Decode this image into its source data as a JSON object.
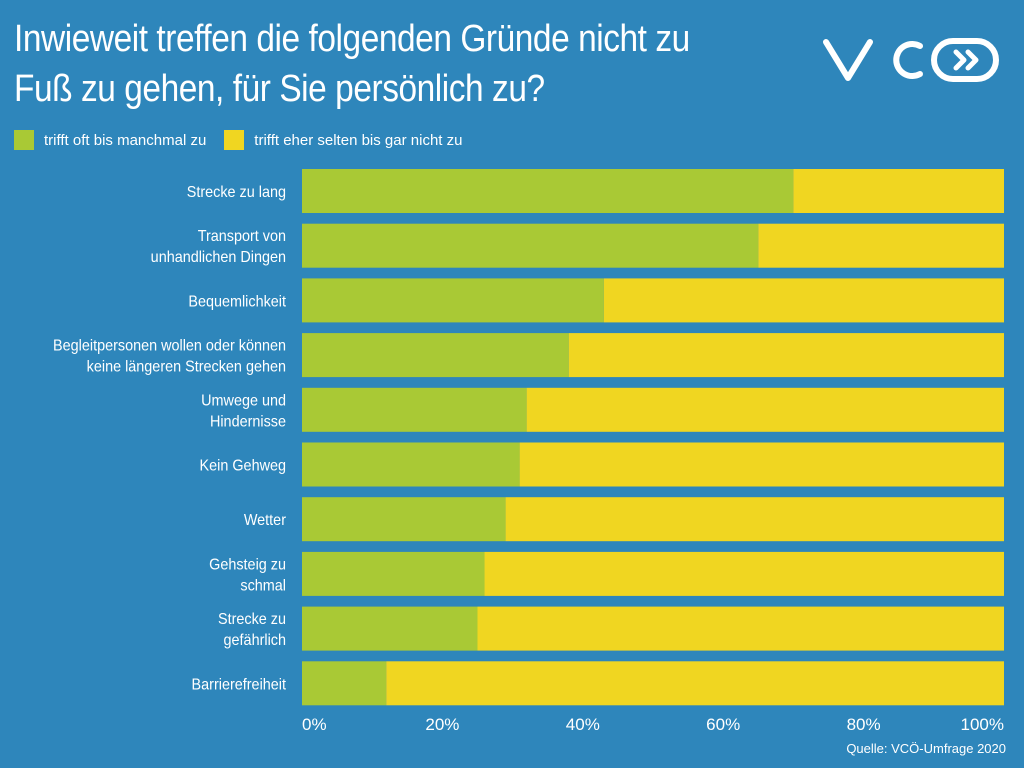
{
  "title": {
    "line1": "Inwieweit treffen die folgenden Gründe nicht zu",
    "line2": "Fuß zu gehen, für Sie persönlich zu?"
  },
  "logo": {
    "text": "VCÖ",
    "icon": "double-chevron-right-icon"
  },
  "legend": [
    {
      "label": "trifft oft bis manchmal zu",
      "color": "#a9c935"
    },
    {
      "label": "trifft eher selten bis gar nicht zu",
      "color": "#f0d621"
    }
  ],
  "source": "Quelle: VCÖ-Umfrage 2020",
  "colors": {
    "background": "#2e86bb",
    "green": "#a9c935",
    "yellow": "#f0d621"
  },
  "chart_data": {
    "type": "bar",
    "orientation": "horizontal",
    "stacked": true,
    "categories": [
      [
        "Strecke zu lang"
      ],
      [
        "Transport von",
        "unhandlichen Dingen"
      ],
      [
        "Bequemlichkeit"
      ],
      [
        "Begleitpersonen wollen oder können",
        "keine längeren Strecken gehen"
      ],
      [
        "Umwege und",
        "Hindernisse"
      ],
      [
        "Kein Gehweg"
      ],
      [
        "Wetter"
      ],
      [
        "Gehsteig zu",
        "schmal"
      ],
      [
        "Strecke zu",
        "gefährlich"
      ],
      [
        "Barrierefreiheit"
      ]
    ],
    "series": [
      {
        "name": "trifft oft bis manchmal zu",
        "color": "#a9c935",
        "values": [
          70,
          65,
          43,
          38,
          32,
          31,
          29,
          26,
          25,
          12
        ]
      },
      {
        "name": "trifft eher selten bis gar nicht zu",
        "color": "#f0d621",
        "values": [
          30,
          35,
          57,
          62,
          68,
          69,
          71,
          74,
          75,
          88
        ]
      }
    ],
    "xlim": [
      0,
      100
    ],
    "xticks": [
      "0%",
      "20%",
      "40%",
      "60%",
      "80%",
      "100%"
    ],
    "grid": false,
    "legend_position": "top-left"
  }
}
